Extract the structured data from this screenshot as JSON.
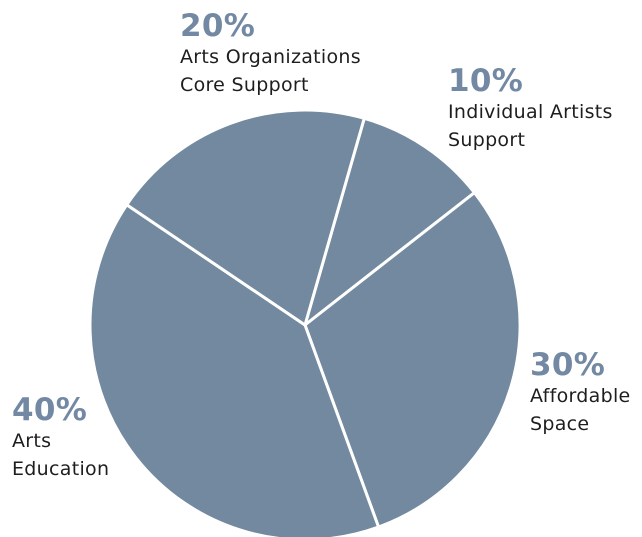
{
  "chart_data": {
    "type": "pie",
    "categories": [
      "Individual Artists Support",
      "Affordable Space",
      "Arts Education",
      "Arts Organizations Core Support"
    ],
    "values": [
      10,
      30,
      40,
      20
    ],
    "value_labels": [
      "10%",
      "30%",
      "40%",
      "20%"
    ],
    "color": "#72899f"
  }
}
